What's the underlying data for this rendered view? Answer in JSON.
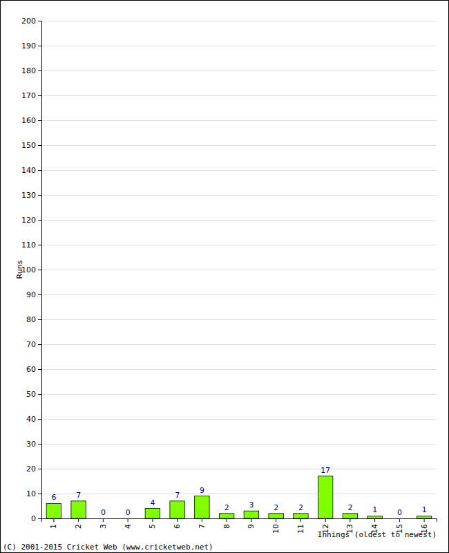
{
  "chart_data": {
    "type": "bar",
    "x_label": "Innings (oldest to newest)",
    "y_label": "Runs",
    "annotations": [
      "(C) 2001-2015 Cricket Web (www.cricketweb.net)"
    ],
    "categories": [
      "1",
      "2",
      "3",
      "4",
      "5",
      "6",
      "7",
      "8",
      "9",
      "10",
      "11",
      "12",
      "13",
      "14",
      "15",
      "16"
    ],
    "values": [
      6,
      7,
      0,
      0,
      4,
      7,
      9,
      2,
      3,
      2,
      2,
      17,
      2,
      1,
      0,
      1
    ],
    "color": "#80ff00",
    "ylim": [
      0,
      200
    ],
    "yticks": [
      0,
      10,
      20,
      30,
      40,
      50,
      60,
      70,
      80,
      90,
      100,
      110,
      120,
      130,
      140,
      150,
      160,
      170,
      180,
      190,
      200
    ],
    "grid": true,
    "data_labels": true
  }
}
